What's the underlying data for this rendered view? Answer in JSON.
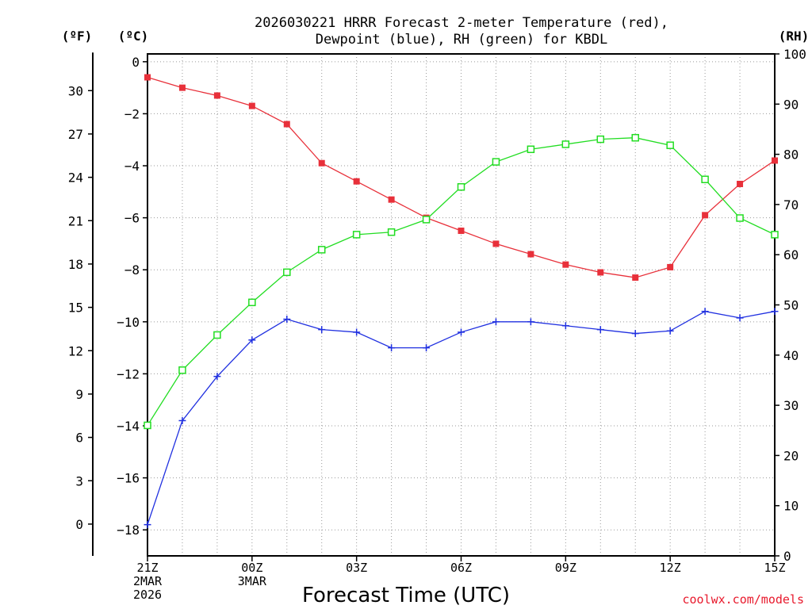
{
  "chart_data": {
    "type": "line",
    "title_line1": "2026030221 HRRR Forecast 2-meter Temperature (red),",
    "title_line2": "Dewpoint (blue), RH (green) for KBDL",
    "xlabel": "Forecast Time (UTC)",
    "credit": "coolwx.com/models",
    "units": {
      "fahrenheit": "(ºF)",
      "celsius": "(ºC)",
      "rh": "(RH)"
    },
    "x": [
      0,
      1,
      2,
      3,
      4,
      5,
      6,
      7,
      8,
      9,
      10,
      11,
      12,
      13,
      14,
      15,
      16,
      17,
      18
    ],
    "xlim": [
      0,
      18
    ],
    "ylim_celsius": [
      -19,
      0.3
    ],
    "ylim_rh": [
      0,
      100
    ],
    "x_ticks": [
      {
        "x": 0,
        "lines": [
          "21Z",
          "2MAR",
          "2026"
        ]
      },
      {
        "x": 3,
        "lines": [
          "00Z",
          "3MAR"
        ]
      },
      {
        "x": 6,
        "lines": [
          "03Z"
        ]
      },
      {
        "x": 9,
        "lines": [
          "06Z"
        ]
      },
      {
        "x": 12,
        "lines": [
          "09Z"
        ]
      },
      {
        "x": 15,
        "lines": [
          "12Z"
        ]
      },
      {
        "x": 18,
        "lines": [
          "15Z"
        ]
      }
    ],
    "celsius_ticks": [
      0,
      -2,
      -4,
      -6,
      -8,
      -10,
      -12,
      -14,
      -16,
      -18
    ],
    "celsius_tick_labels": [
      "0",
      "−2",
      "−4",
      "−6",
      "−8",
      "−10",
      "−12",
      "−14",
      "−16",
      "−18"
    ],
    "fahrenheit_ticks": [
      30,
      27,
      24,
      21,
      18,
      15,
      12,
      9,
      6,
      3,
      0
    ],
    "fahrenheit_tick_labels": [
      "30",
      "27",
      "24",
      "21",
      "18",
      "15",
      "12",
      "9",
      "6",
      "3",
      "0"
    ],
    "rh_ticks": [
      0,
      10,
      20,
      30,
      40,
      50,
      60,
      70,
      80,
      90,
      100
    ],
    "rh_tick_labels": [
      "0",
      "10",
      "20",
      "30",
      "40",
      "50",
      "60",
      "70",
      "80",
      "90",
      "100"
    ],
    "series": [
      {
        "name": "Temperature",
        "axis": "celsius",
        "color": "#e8303a",
        "marker": "filled-square",
        "values": [
          -0.6,
          -1.0,
          -1.3,
          -1.7,
          -2.4,
          -3.9,
          -4.6,
          -5.3,
          -6.0,
          -6.5,
          -7.0,
          -7.4,
          -7.8,
          -8.1,
          -8.3,
          -7.9,
          -5.9,
          -4.7,
          -3.8
        ]
      },
      {
        "name": "Dewpoint",
        "axis": "celsius",
        "color": "#2030e0",
        "marker": "plus",
        "values": [
          -17.8,
          -13.8,
          -12.1,
          -10.7,
          -9.9,
          -10.3,
          -10.4,
          -11.0,
          -11.0,
          -10.4,
          -10.0,
          -10.0,
          -10.15,
          -10.3,
          -10.45,
          -10.35,
          -9.6,
          -9.85,
          -9.6
        ]
      },
      {
        "name": "RH",
        "axis": "rh",
        "color": "#22dd22",
        "marker": "open-square",
        "values": [
          26,
          37,
          44,
          50.5,
          56.5,
          61,
          64,
          64.5,
          67,
          73.5,
          78.5,
          81,
          82,
          83,
          83.3,
          81.8,
          75,
          67.3,
          64
        ]
      }
    ]
  }
}
